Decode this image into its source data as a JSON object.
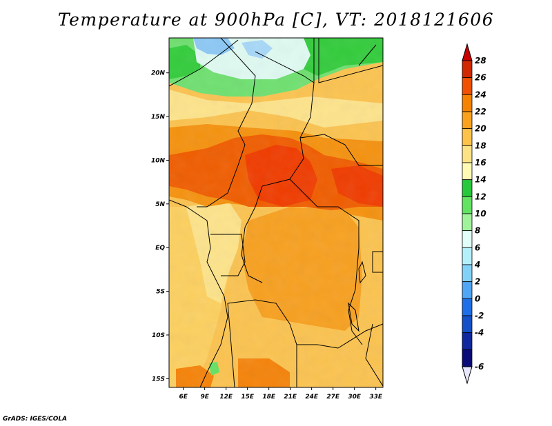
{
  "title": "Temperature at 900hPa [C], VT: 2018121606",
  "credit": "GrADS: IGES/COLA",
  "map": {
    "lon_range": [
      4,
      34
    ],
    "lat_range": [
      -16,
      24
    ],
    "x_ticks": [
      "6E",
      "9E",
      "12E",
      "15E",
      "18E",
      "21E",
      "24E",
      "27E",
      "30E",
      "33E"
    ],
    "y_ticks": [
      "20N",
      "15N",
      "10N",
      "5N",
      "EQ",
      "5S",
      "10S",
      "15S"
    ]
  },
  "colorbar": {
    "labels": [
      "28",
      "26",
      "24",
      "22",
      "20",
      "18",
      "16",
      "14",
      "12",
      "10",
      "8",
      "6",
      "4",
      "2",
      "0",
      "-2",
      "-4",
      "-6"
    ],
    "colors": [
      "#d12800",
      "#f05000",
      "#f58200",
      "#faa21e",
      "#fcc24a",
      "#fde285",
      "#fffbb4",
      "#28c83c",
      "#62e362",
      "#a0f39a",
      "#e1fff8",
      "#b4f0fa",
      "#82d2f8",
      "#50a5f5",
      "#1e6ee9",
      "#1450c8",
      "#0f28a0",
      "#0a0a78"
    ],
    "top_arrow_color": "#c80000",
    "bottom_arrow_color": "#e6e6ff"
  },
  "colors": {
    "hot": "#f03c00",
    "orange": "#f57d00",
    "ocean_warm": "#f7b448",
    "yellow": "#fde38b",
    "green": "#33cc3c",
    "lightgreen": "#7ae87a",
    "pale": "#e3fff5",
    "blue": "#8cc8f5"
  }
}
